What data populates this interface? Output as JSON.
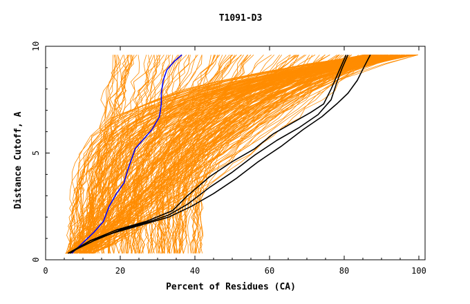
{
  "chart_data": {
    "type": "line",
    "title": "T1091-D3",
    "xlabel": "Percent of Residues (CA)",
    "ylabel": "Distance Cutoff, A",
    "xlim": [
      0,
      100
    ],
    "ylim": [
      0,
      10
    ],
    "x_ticks": [
      0,
      20,
      40,
      60,
      80,
      100
    ],
    "y_ticks": [
      0,
      5,
      10
    ],
    "grid": false,
    "legend": "none",
    "colors": {
      "background_models": "#ff8c00",
      "highlight_blue": "#0000ff",
      "highlight_black": "#000000"
    },
    "highlight_series": [
      {
        "color": "#0000ff",
        "x": [
          7,
          10,
          13,
          15.5,
          17,
          19,
          21,
          22,
          24,
          26.5,
          28.5,
          30.5,
          31,
          31,
          31.5,
          32.5,
          34.5,
          36.5
        ],
        "y": [
          0.3,
          0.8,
          1.3,
          1.8,
          2.5,
          3.1,
          3.6,
          4.2,
          5.2,
          5.7,
          6.1,
          6.7,
          7.3,
          7.8,
          8.4,
          8.9,
          9.3,
          9.6
        ]
      },
      {
        "color": "#000000",
        "x": [
          6.5,
          12,
          19,
          27,
          34,
          38,
          44,
          50,
          56,
          61,
          66,
          71,
          74.5,
          76.5,
          78.5,
          80.5
        ],
        "y": [
          0.3,
          0.9,
          1.4,
          1.8,
          2.3,
          3.0,
          3.9,
          4.6,
          5.2,
          5.9,
          6.4,
          6.9,
          7.3,
          8.0,
          8.8,
          9.6
        ]
      },
      {
        "color": "#000000",
        "x": [
          6,
          13,
          20,
          28,
          33,
          38,
          44,
          50,
          56,
          62,
          68,
          73,
          76.5,
          78,
          79.5,
          81
        ],
        "y": [
          0.3,
          0.9,
          1.4,
          1.8,
          2.1,
          2.6,
          3.4,
          4.1,
          4.9,
          5.6,
          6.2,
          6.8,
          7.5,
          8.3,
          9.0,
          9.6
        ]
      },
      {
        "color": "#000000",
        "x": [
          6,
          12,
          19,
          27,
          33,
          39,
          45,
          51,
          57,
          63,
          69,
          74,
          78,
          81,
          83.5,
          85.5,
          87
        ],
        "y": [
          0.3,
          0.9,
          1.3,
          1.7,
          2.0,
          2.5,
          3.1,
          3.8,
          4.6,
          5.3,
          6.1,
          6.7,
          7.3,
          7.8,
          8.4,
          9.1,
          9.6
        ]
      }
    ]
  }
}
